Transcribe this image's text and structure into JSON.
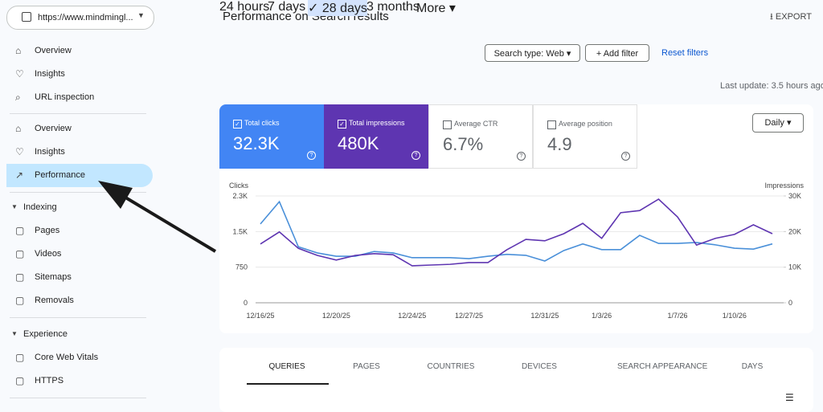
{
  "url_selector": "https://www.mindmingl...",
  "nav_top": [
    "Overview",
    "Insights",
    "URL inspection"
  ],
  "nav_mid": [
    "Overview",
    "Insights",
    "Performance"
  ],
  "sections": [
    {
      "title": "Indexing",
      "items": [
        "Pages",
        "Videos",
        "Sitemaps",
        "Removals"
      ]
    },
    {
      "title": "Experience",
      "items": [
        "Core Web Vitals",
        "HTTPS"
      ]
    }
  ],
  "header": {
    "title": "Performance on Search results",
    "export": "EXPORT"
  },
  "date_ranges": [
    "24 hours",
    "7 days",
    "28 days",
    "3 months",
    "More"
  ],
  "filters": {
    "search_type": "Search type: Web",
    "add_filter": "Add filter",
    "reset": "Reset filters"
  },
  "last_update": "Last update: 3.5 hours ago",
  "metrics": [
    {
      "label": "Total clicks",
      "value": "32.3K"
    },
    {
      "label": "Total impressions",
      "value": "480K"
    },
    {
      "label": "Average CTR",
      "value": "6.7%"
    },
    {
      "label": "Average position",
      "value": "4.9"
    }
  ],
  "granularity": "Daily",
  "tabs": [
    "QUERIES",
    "PAGES",
    "COUNTRIES",
    "DEVICES",
    "SEARCH APPEARANCE",
    "DAYS"
  ],
  "chart_data": {
    "type": "line",
    "ylabel": "Clicks",
    "y2label": "Impressions",
    "categories": [
      "12/16/25",
      null,
      null,
      null,
      "12/20/25",
      null,
      null,
      null,
      "12/24/25",
      null,
      null,
      "12/27/25",
      null,
      null,
      null,
      "12/31/25",
      null,
      null,
      "1/3/26",
      null,
      null,
      null,
      "1/7/26",
      null,
      null,
      "1/10/26",
      null,
      null
    ],
    "ylim": [
      0,
      2250
    ],
    "yticks": [
      0,
      750,
      {
        "value": 1500,
        "label": "1.5K"
      },
      {
        "value": 2250,
        "label": "2.3K"
      }
    ],
    "y2lim": [
      0,
      30000
    ],
    "y2ticks": [
      0,
      {
        "value": 10000,
        "label": "10K"
      },
      {
        "value": 20000,
        "label": "20K"
      },
      {
        "value": 30000,
        "label": "30K"
      }
    ],
    "series": [
      {
        "name": "Clicks",
        "color": "#4a90d9",
        "values": [
          1660,
          2130,
          1180,
          1050,
          980,
          980,
          1080,
          1050,
          950,
          950,
          950,
          930,
          980,
          1020,
          1000,
          880,
          1100,
          1240,
          1120,
          1120,
          1420,
          1250,
          1250,
          1270,
          1220,
          1150,
          1130,
          1240
        ]
      },
      {
        "name": "Impressions",
        "color": "#5e35b1",
        "axis": "y2",
        "values": [
          16500,
          19900,
          15300,
          13300,
          12000,
          13300,
          13800,
          13500,
          10400,
          10600,
          10800,
          11300,
          11300,
          14900,
          17800,
          17400,
          19400,
          22300,
          18100,
          25300,
          25900,
          29100,
          24100,
          16200,
          18100,
          19200,
          21900,
          19400
        ]
      }
    ]
  }
}
